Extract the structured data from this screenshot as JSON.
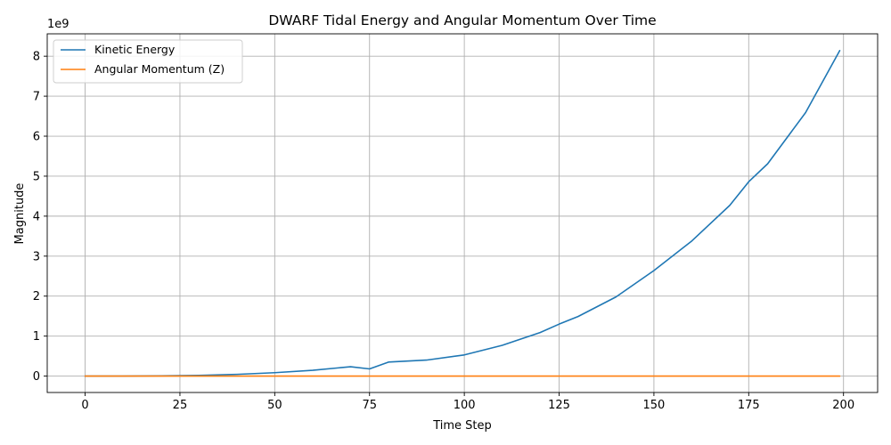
{
  "chart_data": {
    "type": "line",
    "title": "DWARF Tidal Energy and Angular Momentum Over Time",
    "xlabel": "Time Step",
    "ylabel": "Magnitude",
    "y_offset_label": "1e9",
    "xlim": [
      -10,
      209
    ],
    "ylim": [
      -0.41,
      8.56
    ],
    "y_scale_factor": 1000000000,
    "x_ticks": [
      0,
      25,
      50,
      75,
      100,
      125,
      150,
      175,
      200
    ],
    "x_tick_labels": [
      "0",
      "25",
      "50",
      "75",
      "100",
      "125",
      "150",
      "175",
      "200"
    ],
    "y_ticks": [
      0,
      1,
      2,
      3,
      4,
      5,
      6,
      7,
      8
    ],
    "y_tick_labels": [
      "0",
      "1",
      "2",
      "3",
      "4",
      "5",
      "6",
      "7",
      "8"
    ],
    "grid": true,
    "legend_position": "top-left",
    "x": [
      0,
      10,
      20,
      30,
      40,
      50,
      60,
      70,
      75,
      80,
      90,
      100,
      110,
      120,
      125,
      130,
      140,
      150,
      160,
      170,
      175,
      180,
      190,
      199
    ],
    "series": [
      {
        "name": "Kinetic Energy",
        "color": "#1f77b4",
        "values": [
          0,
          0.0007,
          0.0054,
          0.0183,
          0.0434,
          0.085,
          0.146,
          0.234,
          0.18,
          0.35,
          0.4,
          0.53,
          0.77,
          1.09,
          1.3,
          1.49,
          1.98,
          2.64,
          3.38,
          4.27,
          4.86,
          5.31,
          6.59,
          8.14
        ]
      },
      {
        "name": "Angular Momentum (Z)",
        "color": "#ff7f0e",
        "values": [
          0,
          0,
          0,
          0,
          0,
          0,
          0,
          0,
          0,
          0,
          0,
          0,
          0,
          0,
          0,
          0,
          0,
          0,
          0,
          0,
          0,
          0,
          0,
          0
        ]
      }
    ]
  }
}
